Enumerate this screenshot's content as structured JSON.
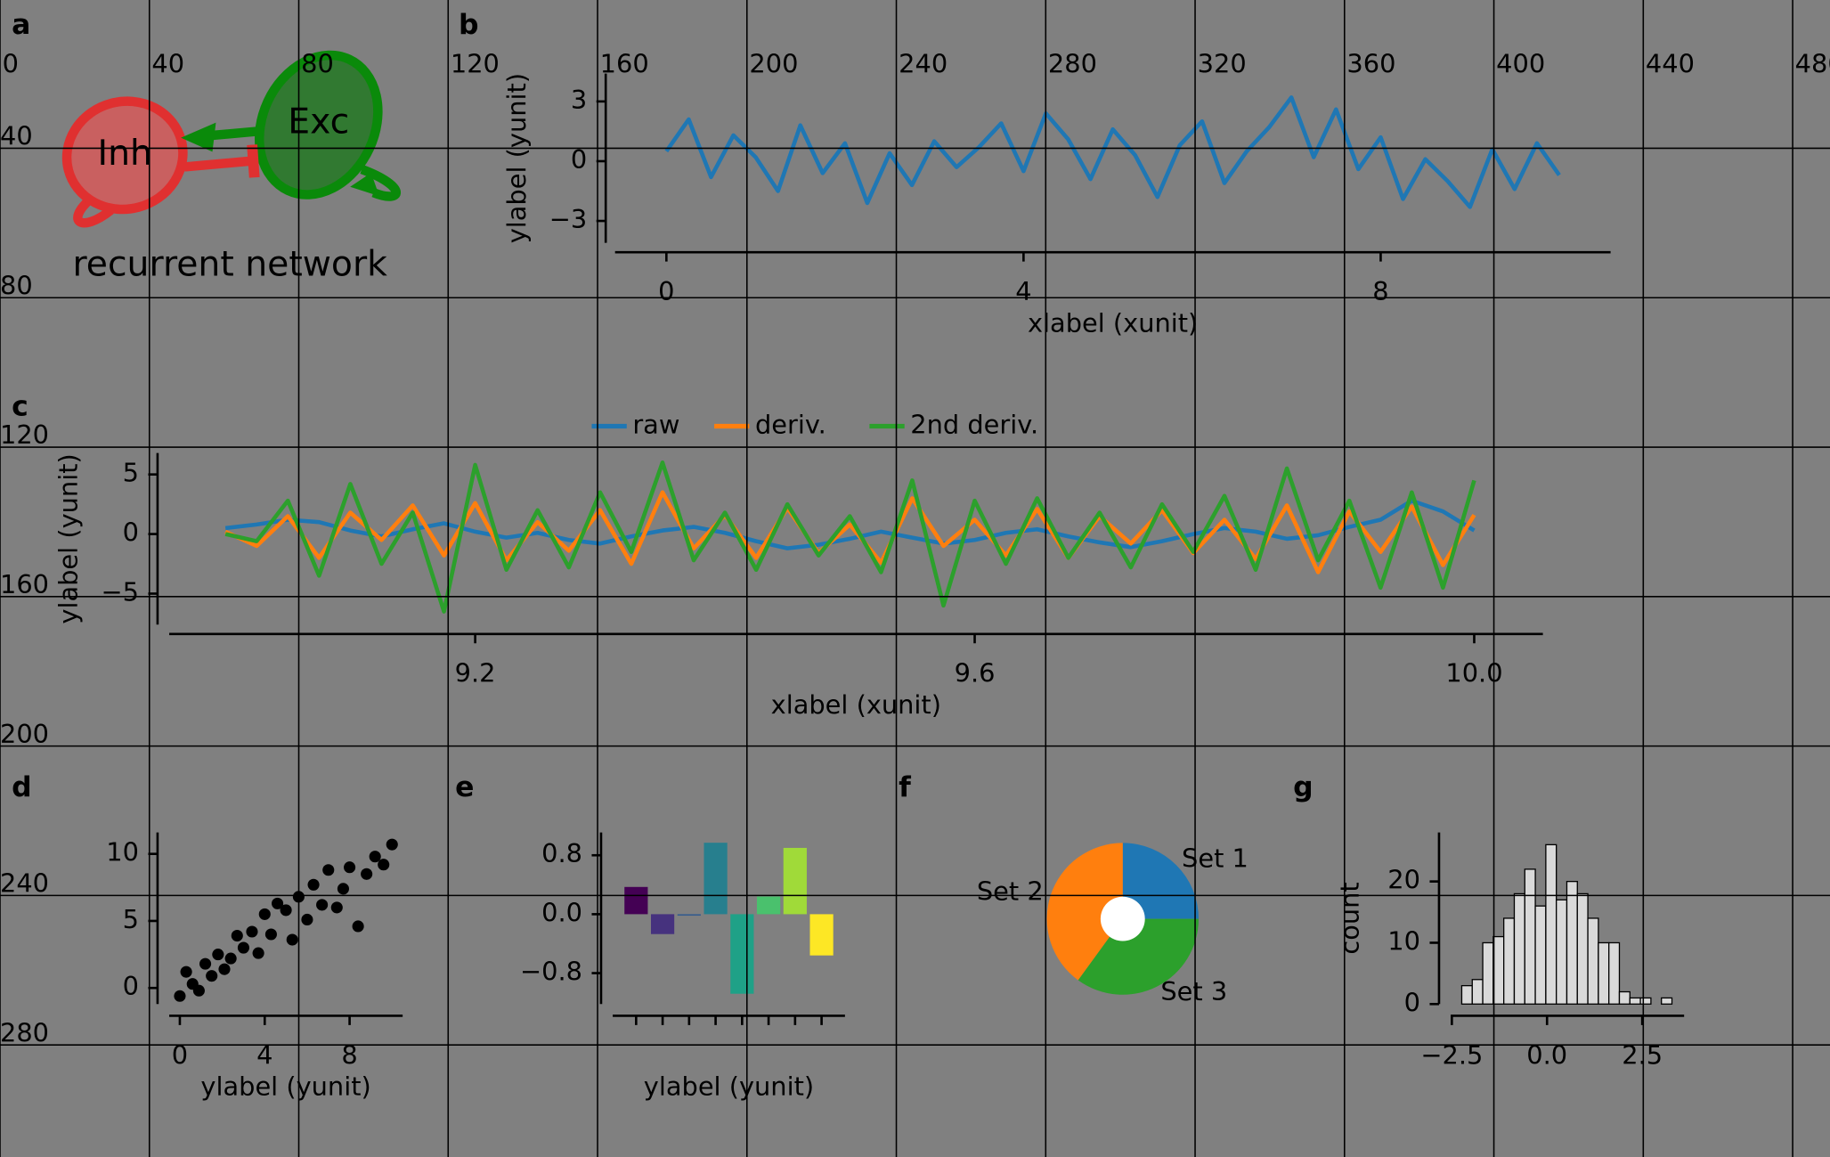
{
  "overlay": {
    "xticks": [
      0,
      40,
      80,
      120,
      160,
      200,
      240,
      280,
      320,
      360,
      400,
      440,
      480
    ],
    "yticks": [
      40,
      80,
      120,
      160,
      200,
      240,
      280
    ]
  },
  "diagram": {
    "panel_label": "a",
    "nodes": [
      {
        "label": "Inh"
      },
      {
        "label": "Exc"
      }
    ],
    "caption": "recurrent network"
  },
  "chart_data": [
    {
      "panel_label": "b",
      "type": "line",
      "color": "#1f77b4",
      "x": [
        0,
        0.25,
        0.5,
        0.75,
        1,
        1.25,
        1.5,
        1.75,
        2,
        2.25,
        2.5,
        2.75,
        3,
        3.25,
        3.5,
        3.75,
        4,
        4.25,
        4.5,
        4.75,
        5,
        5.25,
        5.5,
        5.75,
        6,
        6.25,
        6.5,
        6.75,
        7,
        7.25,
        7.5,
        7.75,
        8,
        8.25,
        8.5,
        8.75,
        9,
        9.25,
        9.5,
        9.75,
        10
      ],
      "values": [
        0.5,
        2.1,
        -0.8,
        1.3,
        0.2,
        -1.5,
        1.8,
        -0.6,
        0.9,
        -2.1,
        0.4,
        -1.2,
        1.0,
        -0.3,
        0.7,
        1.9,
        -0.5,
        2.4,
        1.1,
        -0.9,
        1.6,
        0.3,
        -1.8,
        0.8,
        2.0,
        -1.1,
        0.5,
        1.7,
        3.2,
        0.2,
        2.6,
        -0.4,
        1.2,
        -1.9,
        0.1,
        -1.0,
        -2.3,
        0.6,
        -1.4,
        0.9,
        -0.7
      ],
      "xlim": [
        -0.575,
        10.575
      ],
      "ylim": [
        -4.1,
        4.4
      ],
      "xticks": [
        0,
        4,
        8
      ],
      "yticks": [
        {
          "value": -3,
          "label": "−3"
        },
        0,
        3
      ],
      "xlabel": "xlabel (xunit)",
      "ylabel": "ylabel (yunit)"
    },
    {
      "panel_label": "c",
      "type": "line",
      "legend": "upper center",
      "x": [
        9.0,
        9.025,
        9.05,
        9.075,
        9.1,
        9.125,
        9.15,
        9.175,
        9.2,
        9.225,
        9.25,
        9.275,
        9.3,
        9.325,
        9.35,
        9.375,
        9.4,
        9.425,
        9.45,
        9.475,
        9.5,
        9.525,
        9.55,
        9.575,
        9.6,
        9.625,
        9.65,
        9.675,
        9.7,
        9.725,
        9.75,
        9.775,
        9.8,
        9.825,
        9.85,
        9.875,
        9.9,
        9.925,
        9.95,
        9.975,
        10.0
      ],
      "series": [
        {
          "name": "raw",
          "color": "#1f77b4",
          "values": [
            0.5,
            0.8,
            1.2,
            1.0,
            0.3,
            -0.2,
            0.4,
            0.9,
            0.2,
            -0.3,
            0.1,
            -0.5,
            -0.8,
            -0.2,
            0.3,
            0.6,
            0.1,
            -0.6,
            -1.2,
            -0.9,
            -0.4,
            0.2,
            -0.3,
            -0.8,
            -0.5,
            0.1,
            0.4,
            -0.2,
            -0.7,
            -1.1,
            -0.6,
            0.0,
            0.5,
            0.2,
            -0.4,
            -0.1,
            0.6,
            1.2,
            2.8,
            1.9,
            0.3
          ]
        },
        {
          "name": "deriv.",
          "color": "#ff7f0e",
          "values": [
            0.2,
            -1.0,
            1.5,
            -2.0,
            1.8,
            -0.5,
            2.4,
            -1.8,
            2.6,
            -2.2,
            1.0,
            -1.4,
            2.0,
            -2.5,
            3.5,
            -1.2,
            1.6,
            -2.0,
            2.2,
            -1.6,
            0.8,
            -2.4,
            3.0,
            -1.0,
            1.2,
            -1.8,
            2.1,
            -2.0,
            1.5,
            -0.8,
            2.0,
            -1.6,
            1.2,
            -2.1,
            2.4,
            -3.2,
            1.9,
            -1.5,
            2.3,
            -2.6,
            1.6
          ]
        },
        {
          "name": "2nd deriv.",
          "color": "#2ca02c",
          "values": [
            0.0,
            -0.6,
            2.8,
            -3.5,
            4.2,
            -2.5,
            1.8,
            -6.5,
            5.8,
            -3.0,
            2.0,
            -2.8,
            3.5,
            -1.5,
            6.0,
            -2.2,
            1.8,
            -3.0,
            2.5,
            -1.8,
            1.5,
            -3.2,
            4.5,
            -6.0,
            2.8,
            -2.5,
            3.0,
            -2.0,
            1.8,
            -2.8,
            2.5,
            -1.5,
            3.2,
            -3.0,
            5.5,
            -2.2,
            2.8,
            -4.5,
            3.5,
            -4.5,
            4.5
          ]
        }
      ],
      "xlim": [
        8.955,
        10.055
      ],
      "ylim": [
        -7.6,
        6.8
      ],
      "xticks": [
        9.2,
        9.6,
        {
          "value": 10,
          "label": "10.0"
        }
      ],
      "yticks": [
        {
          "value": -5,
          "label": "−5"
        },
        0,
        5
      ],
      "xlabel": "xlabel (xunit)",
      "ylabel": "ylabel (yunit)"
    },
    {
      "panel_label": "d",
      "type": "scatter",
      "color": "#000000",
      "x": [
        0.0,
        0.3,
        0.6,
        0.9,
        1.2,
        1.5,
        1.8,
        2.1,
        2.4,
        2.7,
        3.0,
        3.4,
        3.7,
        4.0,
        4.3,
        4.6,
        5.0,
        5.3,
        5.6,
        6.0,
        6.3,
        6.7,
        7.0,
        7.4,
        7.7,
        8.0,
        8.4,
        8.8,
        9.2,
        9.6,
        10.0
      ],
      "values": [
        -0.6,
        1.2,
        0.3,
        -0.2,
        1.8,
        0.9,
        2.5,
        1.4,
        2.2,
        3.9,
        3.0,
        4.2,
        2.6,
        5.5,
        4.0,
        6.3,
        5.8,
        3.6,
        6.8,
        5.1,
        7.7,
        6.2,
        8.8,
        6.0,
        7.4,
        9.0,
        4.6,
        8.5,
        9.8,
        9.2,
        10.7
      ],
      "xlim": [
        -0.5,
        10.5
      ],
      "ylim": [
        -1.2,
        11.6
      ],
      "xticks": [
        0,
        4,
        8
      ],
      "yticks": [
        0,
        5,
        10
      ],
      "xlabel": "ylabel (yunit)"
    },
    {
      "panel_label": "e",
      "type": "bar",
      "categories": [
        null,
        null,
        null,
        null,
        null,
        null,
        null,
        null
      ],
      "values": [
        0.37,
        -0.27,
        -0.02,
        0.97,
        -1.08,
        0.24,
        0.9,
        -0.56
      ],
      "colors": [
        "#440154",
        "#46327e",
        "#365c8d",
        "#277f8e",
        "#1fa187",
        "#4ac16d",
        "#a0da39",
        "#fde725"
      ],
      "ylim": [
        -1.22,
        1.11
      ],
      "yticks": [
        {
          "value": -0.8,
          "label": "−0.8"
        },
        {
          "value": 0,
          "label": "0.0"
        },
        0.8
      ],
      "xlabel": "ylabel (yunit)"
    },
    {
      "panel_label": "f",
      "type": "pie",
      "categories": [
        "Set 1",
        "Set 2",
        "Set 3"
      ],
      "values": [
        25,
        40,
        35
      ],
      "colors": [
        "#1f77b4",
        "#ff7f0e",
        "#2ca02c"
      ]
    },
    {
      "panel_label": "g",
      "type": "histogram",
      "color": "#d9d9d9",
      "bins": [
        -2.24,
        -1.964,
        -1.688,
        -1.412,
        -1.136,
        -0.86,
        -0.584,
        -0.308,
        -0.032,
        0.244,
        0.52,
        0.796,
        1.072,
        1.348,
        1.624,
        1.9,
        2.176,
        2.452,
        2.728,
        3.004,
        3.28
      ],
      "values": [
        3,
        4,
        10,
        11,
        14,
        18,
        22,
        16,
        26,
        17,
        20,
        18,
        14,
        10,
        10,
        2,
        1,
        1,
        0,
        1
      ],
      "xlim": [
        -2.53,
        3.6
      ],
      "ylim": [
        0,
        28
      ],
      "xticks": [
        {
          "value": -2.5,
          "label": "−2.5"
        },
        {
          "value": 0,
          "label": "0.0"
        },
        2.5
      ],
      "yticks": [
        0,
        10,
        20
      ],
      "ylabel": "count"
    }
  ]
}
